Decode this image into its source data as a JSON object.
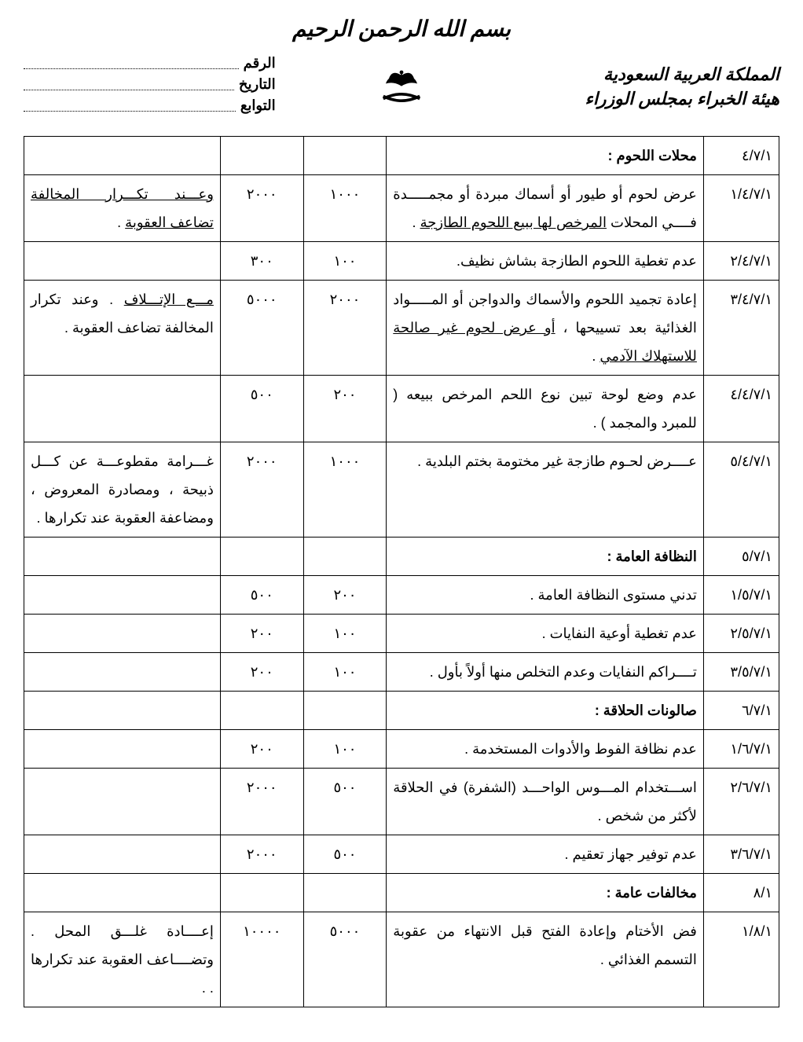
{
  "bismillah": "بسم الله الرحمن الرحيم",
  "org_line1": "المملكة العربية السعودية",
  "org_line2": "هيئة الخبراء بمجلس الوزراء",
  "meta": {
    "number_label": "الرقم",
    "date_label": "التاريخ",
    "attach_label": "التوابع"
  },
  "rows": [
    {
      "code": "٤/٧/١",
      "desc_bold": "محلات اللحوم :",
      "desc": "",
      "n1": "",
      "n2": "",
      "note": ""
    },
    {
      "code": "١/٤/٧/١",
      "desc": "عرض لحوم أو طيور أو أسماك مبردة أو مجمـــــدة فــــي المحلات ",
      "desc_u": "المرخص لها ببيع اللحوم الطازجة",
      "desc_tail": " .",
      "n1": "١٠٠٠",
      "n2": "٢٠٠٠",
      "note_u1": "وعـــند تكـــرار المخالفة",
      "note_mid": " ",
      "note_u2": "تضاعف العقوبة",
      "note_tail": " ."
    },
    {
      "code": "٢/٤/٧/١",
      "desc": "عدم تغطية اللحوم الطازجة بشاش نظيف.",
      "n1": "١٠٠",
      "n2": "٣٠٠",
      "note": ""
    },
    {
      "code": "٣/٤/٧/١",
      "desc": "إعادة تجميد اللحوم والأسماك والدواجن أو المـــــواد الغذائية بعد تسييحها ، ",
      "desc_u": "أو عرض لحوم غير صالحة للاستهلاك الآدمي",
      "desc_tail": " .",
      "n1": "٢٠٠٠",
      "n2": "٥٠٠٠",
      "note_u1": "مـــع الإتـــلاف",
      "note_mid": " . وعند تكرار المخالفة تضاعف العقوبة .",
      "note_u2": "",
      "note_tail": ""
    },
    {
      "code": "٤/٤/٧/١",
      "desc": "عدم وضع لوحة تبين نوع اللحم المرخص ببيعه ( للمبرد والمجمد ) .",
      "n1": "٢٠٠",
      "n2": "٥٠٠",
      "note": ""
    },
    {
      "code": "٥/٤/٧/١",
      "desc": "عــــرض لحـوم طازجة غير مختومة بختم البلدية .",
      "n1": "١٠٠٠",
      "n2": "٢٠٠٠",
      "note": "غـــرامة مقطوعـــة عن كـــل ذبيحة ، ومصادرة المعروض ، ومضاعفة العقوبة عند تكرارها ."
    },
    {
      "code": "٥/٧/١",
      "desc_bold": "النظافة العامة :",
      "desc": "",
      "n1": "",
      "n2": "",
      "note": ""
    },
    {
      "code": "١/٥/٧/١",
      "desc": "تدني مستوى النظافة العامة .",
      "n1": "٢٠٠",
      "n2": "٥٠٠",
      "note": ""
    },
    {
      "code": "٢/٥/٧/١",
      "desc": "عدم تغطية أوعية النفايات .",
      "n1": "١٠٠",
      "n2": "٢٠٠",
      "note": ""
    },
    {
      "code": "٣/٥/٧/١",
      "desc": "تــــراكم النفايات وعدم التخلص منها أولاً بأول .",
      "n1": "١٠٠",
      "n2": "٢٠٠",
      "note": ""
    },
    {
      "code": "٦/٧/١",
      "desc_bold": "صالونات الحلاقة :",
      "desc": "",
      "n1": "",
      "n2": "",
      "note": ""
    },
    {
      "code": "١/٦/٧/١",
      "desc": "عدم نظافة الفوط والأدوات المستخدمة .",
      "n1": "١٠٠",
      "n2": "٢٠٠",
      "note": ""
    },
    {
      "code": "٢/٦/٧/١",
      "desc": "اســـتخدام المـــوس الواحـــد (الشفرة) في الحلاقة لأكثر من شخص .",
      "n1": "٥٠٠",
      "n2": "٢٠٠٠",
      "note": ""
    },
    {
      "code": "٣/٦/٧/١",
      "desc": "عدم توفير جهاز تعقيم .",
      "n1": "٥٠٠",
      "n2": "٢٠٠٠",
      "note": ""
    },
    {
      "code": "٨/١",
      "desc_bold": "مخالفات عامة :",
      "desc": "",
      "n1": "",
      "n2": "",
      "note": ""
    },
    {
      "code": "١/٨/١",
      "desc": "فض الأختام وإعادة الفتح قبل الانتهاء من عقوبة التسمم الغذائي .",
      "n1": "٥٠٠٠",
      "n2": "١٠٠٠٠",
      "note": "إعــــادة غلـــق المحل . وتضــــاعف العقوبة عند تكرارها . ."
    }
  ]
}
